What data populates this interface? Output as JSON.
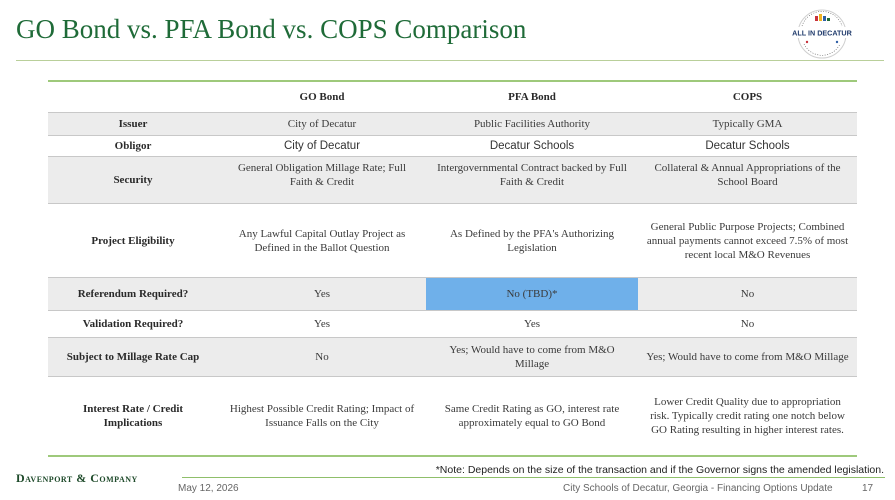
{
  "title": "GO Bond vs. PFA Bond vs. COPS Comparison",
  "logo": {
    "name": "all-in-decatur-logo",
    "text": "ALL IN DECATUR",
    "arc_top": "CITY SCHOOLS OF DECATUR",
    "arc_bottom": "LEARN · TEACH · LEAD",
    "accent_colors": [
      "#c8323c",
      "#1f6b38",
      "#f0b323",
      "#2f5fa6"
    ]
  },
  "table": {
    "columns": [
      "",
      "GO Bond",
      "PFA Bond",
      "COPS"
    ],
    "rows": [
      {
        "label": "Issuer",
        "cells": [
          "City of Decatur",
          "Public Facilities Authority",
          "Typically GMA"
        ]
      },
      {
        "label": "Obligor",
        "cells": [
          "City of Decatur",
          "Decatur Schools",
          "Decatur Schools"
        ]
      },
      {
        "label": "Security",
        "cells": [
          "General Obligation Millage Rate; Full Faith & Credit",
          "Intergovernmental Contract backed by Full Faith & Credit",
          "Collateral & Annual Appropriations of the School Board"
        ]
      },
      {
        "label": "Project Eligibility",
        "cells": [
          "Any Lawful Capital Outlay Project as Defined in the Ballot Question",
          "As Defined by the PFA's Authorizing Legislation",
          "General Public Purpose Projects; Combined annual payments cannot exceed 7.5% of most recent local M&O Revenues"
        ]
      },
      {
        "label": "Referendum Required?",
        "cells": [
          "Yes",
          "No (TBD)*",
          "No"
        ]
      },
      {
        "label": "Validation Required?",
        "cells": [
          "Yes",
          "Yes",
          "No"
        ]
      },
      {
        "label": "Subject to Millage Rate Cap",
        "cells": [
          "No",
          "Yes; Would have to come from M&O Millage",
          "Yes; Would have to come from M&O Millage"
        ]
      },
      {
        "label": "Interest Rate / Credit Implications",
        "cells": [
          "Highest Possible Credit Rating; Impact of Issuance Falls on the City",
          "Same Credit Rating as GO, interest rate approximately equal to GO Bond",
          "Lower Credit Quality due to appropriation risk. Typically credit rating one notch below GO Rating resulting in higher interest rates."
        ]
      }
    ],
    "highlight_color": "#6fb0ea",
    "rule_color": "#9ec97b"
  },
  "note": "*Note: Depends on the size of the transaction and if the Governor signs the amended legislation.",
  "footer": {
    "brand": "Davenport & Company",
    "date": "May 12, 2026",
    "subtitle": "City Schools of Decatur, Georgia - Financing Options Update",
    "page": "17"
  },
  "colors": {
    "title": "#1f6b38",
    "shade": "#ececec"
  }
}
